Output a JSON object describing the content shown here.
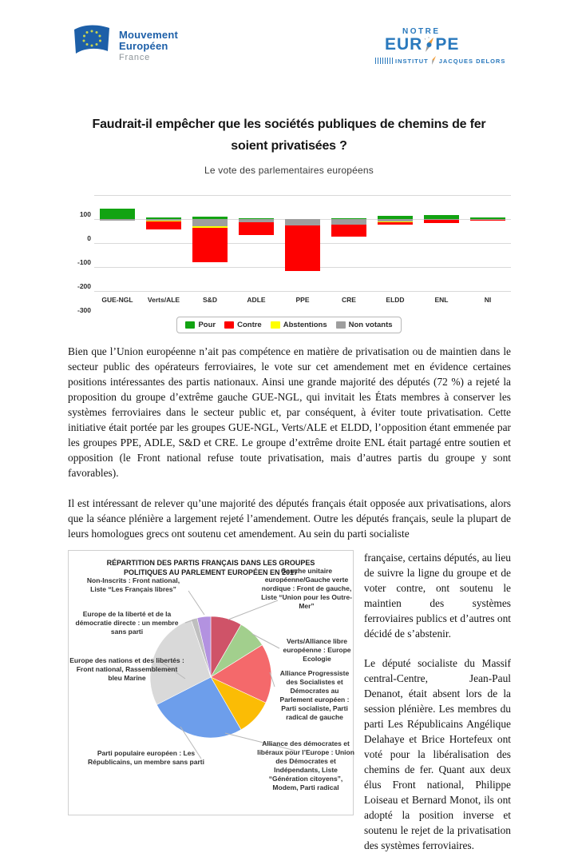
{
  "header": {
    "logo_left": {
      "line1": "Mouvement",
      "line2": "Européen",
      "line3": "France"
    },
    "logo_right": {
      "notre": "NOTRE",
      "eur": "EUR",
      "pe": "PE",
      "institut": "INSTITUT",
      "jacques": "JACQUES DELORS"
    }
  },
  "title": "Faudrait-il empêcher que les sociétés publiques de chemins de fer soient privatisées ?",
  "subtitle": "Le vote des parlementaires européens",
  "colors": {
    "brand_blue": "#1d5fa8",
    "needle_orange": "#f09e3c",
    "needle_gray": "#9a9a9a"
  },
  "paragraphs": {
    "p1": "Bien que l’Union européenne n’ait pas compétence en matière de privatisation ou de maintien dans le secteur public des opérateurs ferroviaires, le vote sur cet amendement met en évidence certaines positions intéressantes des partis nationaux. Ainsi une grande majorité des députés (72 %) a rejeté la proposition du groupe d’extrême gauche GUE-NGL, qui invitait les États membres à conserver les systèmes ferroviaires dans le secteur public et, par conséquent, à éviter toute privatisation. Cette initiative était portée par les groupes GUE-NGL, Verts/ALE et ELDD, l’opposition étant emmenée par les groupes PPE, ADLE, S&D et CRE. Le groupe d’extrême droite ENL était partagé entre soutien et opposition (le Front national refuse toute privatisation, mais d’autres partis du groupe y sont favorables).",
    "p2": "Il est intéressant de relever qu’une majorité des députés français était opposée aux privatisations, alors que la séance plénière a largement rejeté l’amendement. Outre les députés français, seule la plupart de leurs homologues grecs ont soutenu cet amendement.  Au sein du parti socialiste",
    "p2_cont": "française, certains députés, au lieu de suivre la ligne du groupe et de voter contre, ont soutenu le maintien des systèmes ferroviaires publics et d’autres ont décidé de s’abstenir.",
    "p3": "Le député socialiste du Massif central-Centre, Jean-Paul Denanot, était absent lors de la session plénière. Les membres du parti Les Républicains Angélique Delahaye et Brice Hortefeux ont voté pour la libéralisation des chemins de fer. Quant aux deux élus Front national, Philippe Loiseau et Bernard Monot, ils ont adopté la position inverse et soutenu le rejet de la privatisation des systèmes ferroviaires."
  },
  "chart_data": [
    {
      "type": "bar",
      "stacked": true,
      "title": "Le vote des parlementaires européens",
      "categories": [
        "GUE-NGL",
        "Verts/ALE",
        "S&D",
        "ADLE",
        "PPE",
        "CRE",
        "ELDD",
        "ENL",
        "NI"
      ],
      "series": [
        {
          "name": "Pour",
          "color": "#12a312",
          "values": [
            45,
            7,
            11,
            2,
            0,
            2,
            15,
            18,
            8
          ]
        },
        {
          "name": "Contre",
          "color": "#fe0000",
          "values": [
            0,
            -31,
            -144,
            -55,
            -190,
            -50,
            -9,
            -14,
            -4
          ]
        },
        {
          "name": "Abstentions",
          "color": "#ffff00",
          "values": [
            0,
            -4,
            -7,
            0,
            0,
            0,
            -4,
            0,
            0
          ]
        },
        {
          "name": "Non votants",
          "color": "#9e9e9e",
          "values": [
            -8,
            -7,
            -29,
            -13,
            -25,
            -22,
            -10,
            -2,
            -2
          ]
        }
      ],
      "ylim": [
        -300,
        100
      ],
      "yticks": [
        100,
        0,
        -100,
        -200,
        -300
      ],
      "legend_position": "bottom",
      "grid": true
    },
    {
      "type": "pie",
      "title": "RÉPARTITION DES PARTIS FRANÇAIS DANS LES GROUPES POLITIQUES AU PARLEMENT EUROPÉEN EN 2017",
      "unit": "degrees_of_circle_estimated",
      "slices": [
        {
          "label": "Gauche unitaire européenne/Gauche verte nordique : Front de gauche, Liste “Union pour les Outre-Mer”",
          "color": "#cf5368",
          "value": 30
        },
        {
          "label": "Verts/Alliance libre européenne : Europe Ecologie",
          "color": "#a2cf8d",
          "value": 28
        },
        {
          "label": "Alliance Progressiste des Socialistes et Démocrates au Parlement européen : Parti socialiste, Parti radical de gauche",
          "color": "#f4696b",
          "value": 57
        },
        {
          "label": "Alliance des démocrates et libéraux pour l’Europe : Union des Démocrates et Indépendants, Liste “Génération citoyens”, Modem, Parti radical",
          "color": "#fbbc05",
          "value": 35
        },
        {
          "label": "Parti populaire européen : Les Républicains, un membre sans parti",
          "color": "#6d9eeb",
          "value": 93
        },
        {
          "label": "Europe des nations et des libertés : Front national, Rassemblement bleu Marine",
          "color": "#d9d9d9",
          "value": 98
        },
        {
          "label": "Europe de la liberté et de la démocratie directe : un membre sans parti",
          "color": "#bfbfbf",
          "value": 6
        },
        {
          "label": "Non-Inscrits : Front national, Liste “Les Français libres”",
          "color": "#b392e0",
          "value": 13
        }
      ]
    }
  ]
}
